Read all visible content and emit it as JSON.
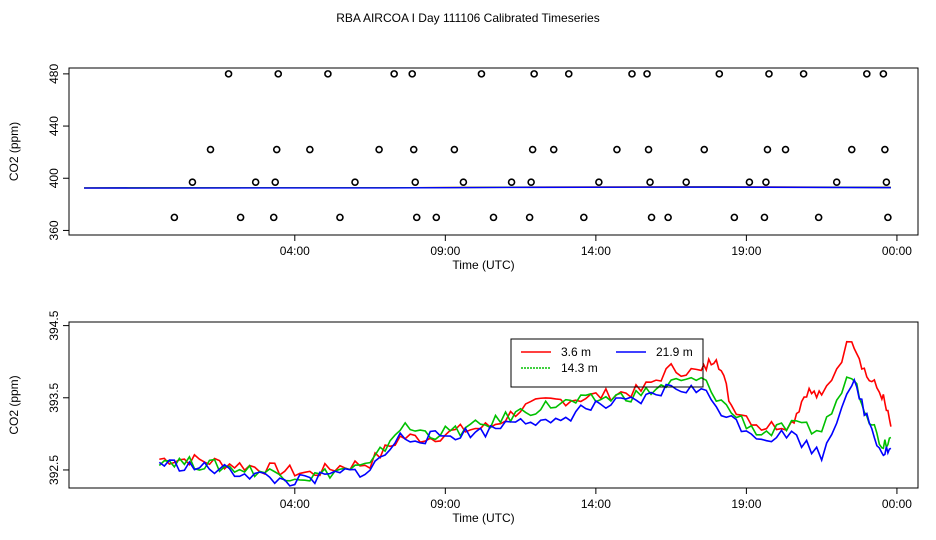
{
  "title": "RBA AIRCOA I  Day 111106  Calibrated Timeseries",
  "chart_data": [
    {
      "type": "scatter",
      "xlabel": "Time (UTC)",
      "ylabel": "CO2 (ppm)",
      "xlim": [
        -3.5,
        24.7
      ],
      "ylim": [
        356.5,
        484.5
      ],
      "xticks": [
        {
          "v": 4,
          "label": "04:00"
        },
        {
          "v": 9,
          "label": "09:00"
        },
        {
          "v": 14,
          "label": "14:00"
        },
        {
          "v": 19,
          "label": "19:00"
        },
        {
          "v": 24,
          "label": "00:00"
        }
      ],
      "yticks": [
        {
          "v": 360,
          "label": "360"
        },
        {
          "v": 400,
          "label": "400"
        },
        {
          "v": 440,
          "label": "440"
        },
        {
          "v": 480,
          "label": "480"
        }
      ],
      "points": [
        {
          "x": 0.0,
          "y": 370
        },
        {
          "x": 0.6,
          "y": 397
        },
        {
          "x": 1.2,
          "y": 422
        },
        {
          "x": 1.8,
          "y": 480
        },
        {
          "x": 2.2,
          "y": 370
        },
        {
          "x": 2.7,
          "y": 397
        },
        {
          "x": 3.3,
          "y": 370
        },
        {
          "x": 3.35,
          "y": 397
        },
        {
          "x": 3.4,
          "y": 422
        },
        {
          "x": 3.45,
          "y": 480
        },
        {
          "x": 4.5,
          "y": 422
        },
        {
          "x": 5.1,
          "y": 480
        },
        {
          "x": 5.5,
          "y": 370
        },
        {
          "x": 6.0,
          "y": 397
        },
        {
          "x": 6.8,
          "y": 422
        },
        {
          "x": 7.3,
          "y": 480
        },
        {
          "x": 7.9,
          "y": 480
        },
        {
          "x": 7.95,
          "y": 422
        },
        {
          "x": 8.0,
          "y": 397
        },
        {
          "x": 8.05,
          "y": 370
        },
        {
          "x": 8.7,
          "y": 370
        },
        {
          "x": 9.3,
          "y": 422
        },
        {
          "x": 9.6,
          "y": 397
        },
        {
          "x": 10.2,
          "y": 480
        },
        {
          "x": 10.6,
          "y": 370
        },
        {
          "x": 11.2,
          "y": 397
        },
        {
          "x": 11.8,
          "y": 370
        },
        {
          "x": 11.85,
          "y": 397
        },
        {
          "x": 11.9,
          "y": 422
        },
        {
          "x": 11.95,
          "y": 480
        },
        {
          "x": 12.6,
          "y": 422
        },
        {
          "x": 13.1,
          "y": 480
        },
        {
          "x": 13.6,
          "y": 370
        },
        {
          "x": 14.1,
          "y": 397
        },
        {
          "x": 14.7,
          "y": 422
        },
        {
          "x": 15.2,
          "y": 480
        },
        {
          "x": 15.7,
          "y": 480
        },
        {
          "x": 15.75,
          "y": 422
        },
        {
          "x": 15.8,
          "y": 397
        },
        {
          "x": 15.85,
          "y": 370
        },
        {
          "x": 16.4,
          "y": 370
        },
        {
          "x": 17.0,
          "y": 397
        },
        {
          "x": 17.6,
          "y": 422
        },
        {
          "x": 18.1,
          "y": 480
        },
        {
          "x": 18.6,
          "y": 370
        },
        {
          "x": 19.1,
          "y": 397
        },
        {
          "x": 19.6,
          "y": 370
        },
        {
          "x": 19.65,
          "y": 397
        },
        {
          "x": 19.7,
          "y": 422
        },
        {
          "x": 19.75,
          "y": 480
        },
        {
          "x": 20.3,
          "y": 422
        },
        {
          "x": 20.9,
          "y": 480
        },
        {
          "x": 21.4,
          "y": 370
        },
        {
          "x": 22.0,
          "y": 397
        },
        {
          "x": 22.5,
          "y": 422
        },
        {
          "x": 23.0,
          "y": 480
        },
        {
          "x": 23.55,
          "y": 480
        },
        {
          "x": 23.6,
          "y": 422
        },
        {
          "x": 23.65,
          "y": 397
        },
        {
          "x": 23.7,
          "y": 370
        }
      ],
      "baseline_series": [
        {
          "color": "#ff0000",
          "x": [
            -3,
            7,
            12,
            18,
            23.8
          ],
          "y": [
            392.6,
            392.7,
            393.2,
            393.4,
            393.0
          ]
        },
        {
          "color": "#00c000",
          "x": [
            -3,
            7,
            12,
            18,
            23.8
          ],
          "y": [
            392.6,
            392.7,
            393.1,
            393.3,
            392.9
          ]
        },
        {
          "color": "#0000ff",
          "x": [
            -3,
            7,
            12,
            18,
            23.8
          ],
          "y": [
            392.5,
            392.6,
            393.0,
            393.2,
            392.8
          ]
        }
      ]
    },
    {
      "type": "line",
      "xlabel": "Time (UTC)",
      "ylabel": "CO2 (ppm)",
      "xlim": [
        -3.5,
        24.7
      ],
      "ylim": [
        392.25,
        394.55
      ],
      "xticks": [
        {
          "v": 4,
          "label": "04:00"
        },
        {
          "v": 9,
          "label": "09:00"
        },
        {
          "v": 14,
          "label": "14:00"
        },
        {
          "v": 19,
          "label": "19:00"
        },
        {
          "v": 24,
          "label": "00:00"
        }
      ],
      "yticks": [
        {
          "v": 392.5,
          "label": "392.5"
        },
        {
          "v": 393.5,
          "label": "393.5"
        },
        {
          "v": 394.5,
          "label": "394.5"
        }
      ],
      "legend": "top-center",
      "series": [
        {
          "name": "3.6 m",
          "color": "#ff0000",
          "x": [
            -0.5,
            0.5,
            1.5,
            2.5,
            3.5,
            4.5,
            5.5,
            6.5,
            7.5,
            8.5,
            9.5,
            10.5,
            11.5,
            12.5,
            13.5,
            14.5,
            15.5,
            16.5,
            17.5,
            18.0,
            18.5,
            19.5,
            20.5,
            21.0,
            21.5,
            22.5,
            23.0,
            23.5,
            23.8
          ],
          "y": [
            392.65,
            392.65,
            392.6,
            392.55,
            392.5,
            392.45,
            392.55,
            392.6,
            392.95,
            392.95,
            393.05,
            393.1,
            393.35,
            393.45,
            393.5,
            393.55,
            393.6,
            393.9,
            393.85,
            394.1,
            393.4,
            393.1,
            393.15,
            393.6,
            393.5,
            394.35,
            393.8,
            393.55,
            393.1
          ]
        },
        {
          "name": "14.3 m",
          "color": "#00c000",
          "x": [
            -0.5,
            0.5,
            1.5,
            2.5,
            3.5,
            4.5,
            5.5,
            6.5,
            7.5,
            8.5,
            9.5,
            10.5,
            11.5,
            12.5,
            13.5,
            14.5,
            15.5,
            16.5,
            17.5,
            18.5,
            19.5,
            20.5,
            21.5,
            22.5,
            23.0,
            23.5,
            23.8
          ],
          "y": [
            392.65,
            392.6,
            392.55,
            392.5,
            392.45,
            392.4,
            392.5,
            392.55,
            393.1,
            393.0,
            393.05,
            393.15,
            393.3,
            393.4,
            393.45,
            393.5,
            393.55,
            393.7,
            393.75,
            393.3,
            393.0,
            393.1,
            393.05,
            393.85,
            393.3,
            392.85,
            392.95
          ]
        },
        {
          "name": "21.9 m",
          "color": "#0000ff",
          "x": [
            -0.5,
            0.5,
            1.5,
            2.5,
            3.5,
            4.5,
            5.5,
            6.5,
            7.5,
            8.5,
            9.5,
            10.5,
            11.5,
            12.5,
            13.5,
            14.5,
            15.5,
            16.5,
            17.5,
            18.5,
            19.5,
            20.5,
            21.5,
            22.5,
            23.0,
            23.5,
            23.8
          ],
          "y": [
            392.6,
            392.55,
            392.5,
            392.45,
            392.35,
            392.35,
            392.45,
            392.5,
            392.95,
            392.95,
            393.0,
            393.05,
            393.25,
            393.1,
            393.35,
            393.4,
            393.45,
            393.65,
            393.6,
            393.2,
            392.95,
            393.0,
            392.7,
            393.75,
            393.25,
            392.75,
            392.8
          ]
        }
      ]
    }
  ]
}
